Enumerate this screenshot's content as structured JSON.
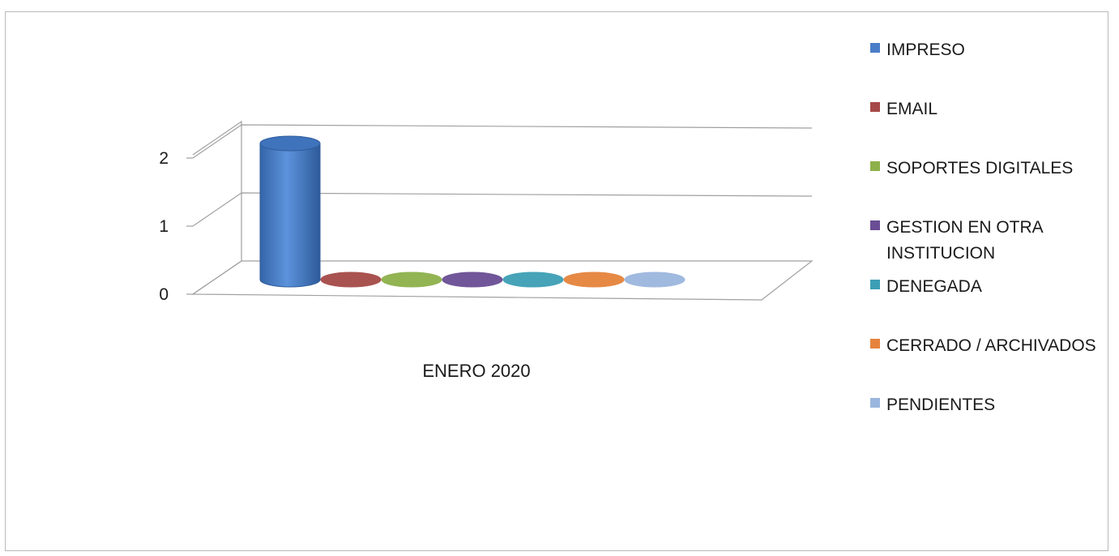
{
  "chart_data": {
    "type": "bar",
    "style": "3d-cylinder",
    "title": "",
    "xlabel": "",
    "ylabel": "",
    "categories": [
      "ENERO 2020"
    ],
    "ylim": [
      0,
      2
    ],
    "yticks": [
      "0",
      "1",
      "2"
    ],
    "grid": true,
    "legend_position": "right",
    "series": [
      {
        "name": "IMPRESO",
        "values": [
          2
        ],
        "color": "#4a7ec7"
      },
      {
        "name": "EMAIL",
        "values": [
          0
        ],
        "color": "#a54a47"
      },
      {
        "name": "SOPORTES DIGITALES",
        "values": [
          0
        ],
        "color": "#8db04a"
      },
      {
        "name": "GESTION EN OTRA INSTITUCION",
        "values": [
          0
        ],
        "color": "#6a4d94"
      },
      {
        "name": "DENEGADA",
        "values": [
          0
        ],
        "color": "#3d9fb5"
      },
      {
        "name": "CERRADO / ARCHIVADOS",
        "values": [
          0
        ],
        "color": "#e5833c"
      },
      {
        "name": "PENDIENTES",
        "values": [
          0
        ],
        "color": "#9bb6de"
      }
    ]
  }
}
